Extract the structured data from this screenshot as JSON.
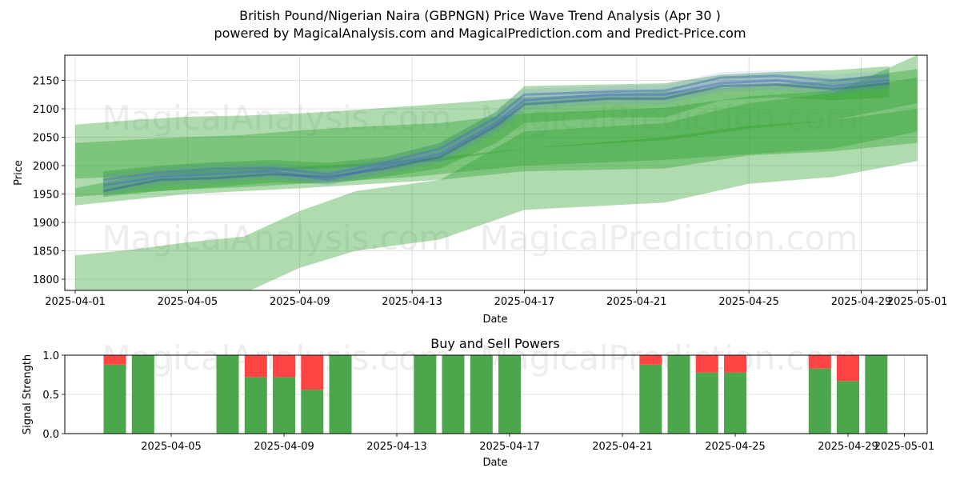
{
  "title": "British Pound/Nigerian Naira (GBPNGN) Price Wave Trend Analysis (Apr 30 )",
  "subtitle": "powered by MagicalAnalysis.com and MagicalPrediction.com and Predict-Price.com",
  "watermarks": [
    "MagicalAnalysis.com",
    "MagicalPrediction.com"
  ],
  "colors": {
    "band": "#2ca02c",
    "wave": "#6a6aff",
    "buy": "#4ca64c",
    "sell": "#ff4444"
  },
  "chart_data": [
    {
      "type": "area",
      "xlabel": "Date",
      "ylabel": "Price",
      "x_ticks": [
        "2025-04-01",
        "2025-04-05",
        "2025-04-09",
        "2025-04-13",
        "2025-04-17",
        "2025-04-21",
        "2025-04-25",
        "2025-04-29",
        "2025-05-01"
      ],
      "y_ticks": [
        1800,
        1850,
        1900,
        1950,
        2000,
        2050,
        2100,
        2150
      ],
      "ylim": [
        1778,
        2190
      ],
      "xlim": [
        "2025-03-31",
        "2025-05-01"
      ],
      "grid": true,
      "series": [
        {
          "x": [
            "2025-04-01",
            "2025-04-03",
            "2025-04-05",
            "2025-04-07",
            "2025-04-09",
            "2025-04-11",
            "2025-04-13",
            "2025-04-15",
            "2025-04-17",
            "2025-04-22",
            "2025-04-25",
            "2025-04-28",
            "2025-05-01"
          ],
          "upper": [
            2072,
            2080,
            2086,
            2088,
            2092,
            2098,
            2105,
            2112,
            2120,
            2130,
            2140,
            2150,
            2170
          ],
          "lower": [
            1945,
            1952,
            1958,
            1962,
            1968,
            1974,
            1980,
            1990,
            2000,
            2010,
            2020,
            2030,
            2060
          ]
        },
        {
          "x": [
            "2025-04-01",
            "2025-04-04",
            "2025-04-07",
            "2025-04-09",
            "2025-04-11",
            "2025-04-14",
            "2025-04-17",
            "2025-04-22",
            "2025-04-25",
            "2025-04-28",
            "2025-05-01"
          ],
          "upper": [
            2040,
            2048,
            2054,
            2062,
            2068,
            2075,
            2092,
            2102,
            2122,
            2132,
            2155
          ],
          "lower": [
            1977,
            1983,
            1988,
            1993,
            1998,
            2008,
            2030,
            2045,
            2065,
            2080,
            2110
          ]
        },
        {
          "x": [
            "2025-04-01",
            "2025-04-03",
            "2025-04-05",
            "2025-04-07",
            "2025-04-09",
            "2025-04-11",
            "2025-04-14",
            "2025-04-17",
            "2025-04-22",
            "2025-04-25",
            "2025-04-28",
            "2025-05-01"
          ],
          "upper": [
            1842,
            1852,
            1865,
            1875,
            1920,
            1955,
            1975,
            2060,
            2075,
            2110,
            2128,
            2195
          ],
          "lower": [
            1740,
            1750,
            1760,
            1775,
            1820,
            1850,
            1870,
            1922,
            1935,
            1968,
            1980,
            2008
          ]
        },
        {
          "x": [
            "2025-04-01",
            "2025-04-03",
            "2025-04-05",
            "2025-04-07",
            "2025-04-09",
            "2025-04-11",
            "2025-04-14",
            "2025-04-17",
            "2025-04-22",
            "2025-04-25",
            "2025-04-28",
            "2025-05-01"
          ],
          "upper": [
            1960,
            1980,
            1990,
            1994,
            1998,
            2003,
            2015,
            2030,
            2050,
            2070,
            2080,
            2100
          ],
          "lower": [
            1930,
            1940,
            1950,
            1955,
            1960,
            1966,
            1975,
            1990,
            1995,
            2018,
            2025,
            2040
          ]
        },
        {
          "x": [
            "2025-04-02",
            "2025-04-04",
            "2025-04-06",
            "2025-04-08",
            "2025-04-10",
            "2025-04-12",
            "2025-04-14",
            "2025-04-16",
            "2025-04-17",
            "2025-04-20",
            "2025-04-22",
            "2025-04-24",
            "2025-04-26",
            "2025-04-28",
            "2025-04-30"
          ],
          "upper": [
            1990,
            2000,
            2006,
            2010,
            2005,
            2015,
            2040,
            2095,
            2140,
            2143,
            2145,
            2160,
            2165,
            2168,
            2175
          ],
          "lower": [
            1945,
            1955,
            1962,
            1970,
            1968,
            1980,
            1995,
            2040,
            2075,
            2085,
            2085,
            2115,
            2120,
            2115,
            2120
          ]
        }
      ],
      "waves": [
        {
          "x": [
            "2025-04-02",
            "2025-04-04",
            "2025-04-06",
            "2025-04-08",
            "2025-04-10",
            "2025-04-12",
            "2025-04-14",
            "2025-04-16",
            "2025-04-17",
            "2025-04-20",
            "2025-04-22",
            "2025-04-24",
            "2025-04-26",
            "2025-04-28",
            "2025-04-30"
          ],
          "values": [
            1965,
            1980,
            1985,
            1990,
            1975,
            2000,
            2020,
            2075,
            2115,
            2125,
            2125,
            2145,
            2150,
            2140,
            2150
          ]
        },
        {
          "x": [
            "2025-04-02",
            "2025-04-04",
            "2025-04-06",
            "2025-04-08",
            "2025-04-10",
            "2025-04-12",
            "2025-04-14",
            "2025-04-16",
            "2025-04-17",
            "2025-04-20",
            "2025-04-22",
            "2025-04-24",
            "2025-04-26",
            "2025-04-28",
            "2025-04-30"
          ],
          "values": [
            1955,
            1975,
            1978,
            1985,
            1980,
            1995,
            2015,
            2070,
            2108,
            2118,
            2118,
            2140,
            2143,
            2135,
            2145
          ]
        },
        {
          "x": [
            "2025-04-02",
            "2025-04-04",
            "2025-04-06",
            "2025-04-08",
            "2025-04-10",
            "2025-04-12",
            "2025-04-14",
            "2025-04-16",
            "2025-04-17",
            "2025-04-20",
            "2025-04-22",
            "2025-04-24",
            "2025-04-26",
            "2025-04-28",
            "2025-04-30"
          ],
          "values": [
            1975,
            1988,
            1995,
            1996,
            1985,
            2005,
            2030,
            2085,
            2125,
            2130,
            2132,
            2155,
            2158,
            2150,
            2158
          ]
        }
      ]
    },
    {
      "type": "bar",
      "title": "Buy and Sell Powers",
      "xlabel": "Date",
      "ylabel": "Signal Strength",
      "x_ticks": [
        "2025-04-05",
        "2025-04-09",
        "2025-04-13",
        "2025-04-17",
        "2025-04-21",
        "2025-04-25",
        "2025-04-29",
        "2025-05-01"
      ],
      "y_ticks": [
        "0.0",
        "0.5",
        "1.0"
      ],
      "ylim": [
        0,
        1
      ],
      "xlim": [
        "2025-04-01",
        "2025-05-01"
      ],
      "grid": true,
      "categories": [
        "2025-04-03",
        "2025-04-04",
        "2025-04-07",
        "2025-04-08",
        "2025-04-09",
        "2025-04-10",
        "2025-04-11",
        "2025-04-14",
        "2025-04-15",
        "2025-04-16",
        "2025-04-17",
        "2025-04-22",
        "2025-04-23",
        "2025-04-24",
        "2025-04-25",
        "2025-04-28",
        "2025-04-29",
        "2025-04-30"
      ],
      "series": [
        {
          "name": "Buy",
          "values": [
            0.88,
            1.0,
            1.0,
            0.72,
            0.72,
            0.56,
            1.0,
            1.0,
            1.0,
            1.0,
            1.0,
            0.88,
            1.0,
            0.78,
            0.78,
            0.83,
            0.67,
            1.0
          ]
        },
        {
          "name": "Sell",
          "values": [
            0.12,
            0.0,
            0.0,
            0.28,
            0.28,
            0.44,
            0.0,
            0.0,
            0.0,
            0.0,
            0.0,
            0.12,
            0.0,
            0.22,
            0.22,
            0.17,
            0.33,
            0.0
          ]
        }
      ]
    }
  ]
}
